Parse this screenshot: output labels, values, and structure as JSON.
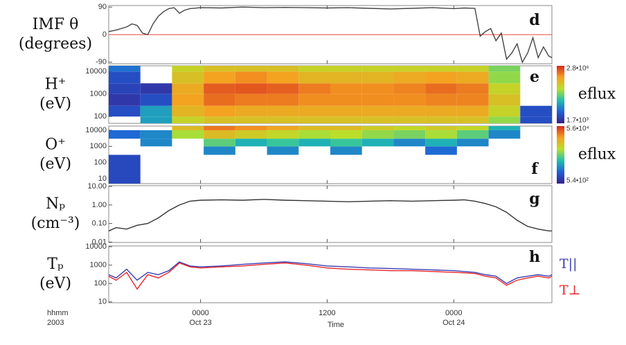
{
  "chart_data": [
    {
      "type": "line",
      "panel": "d",
      "ylabel": [
        "IMF θ",
        "(degrees)"
      ],
      "log_y": false,
      "xlim": [
        -8.7,
        33.3
      ],
      "ylim": [
        -95,
        95
      ],
      "yticks": [
        90,
        0,
        -90
      ],
      "reference_line": 0,
      "reference_color": "#e8413a",
      "x": [
        -8.7,
        -8,
        -7,
        -6.5,
        -6,
        -5.5,
        -5,
        -4.5,
        -4,
        -3.5,
        -3,
        -2.5,
        -2,
        -1.5,
        -1,
        0,
        2,
        4,
        6,
        8,
        10,
        12,
        14,
        16,
        18,
        20,
        22,
        24,
        25,
        26,
        26.5,
        27,
        27.5,
        28,
        28.5,
        29,
        29.5,
        30,
        30.5,
        31,
        31.5,
        32,
        32.5,
        33,
        33.3
      ],
      "series": [
        {
          "color": "#444444",
          "values": [
            10,
            15,
            25,
            35,
            30,
            5,
            0,
            35,
            60,
            75,
            85,
            88,
            70,
            80,
            85,
            88,
            87,
            90,
            88,
            89,
            88,
            87,
            88,
            86,
            84,
            86,
            88,
            85,
            87,
            86,
            -5,
            10,
            20,
            -20,
            5,
            -80,
            -60,
            -30,
            -90,
            -60,
            -10,
            -75,
            -40,
            -70,
            -75
          ]
        }
      ]
    },
    {
      "type": "heatmap",
      "panel": "e",
      "ylabel": [
        "H⁺",
        "(eV)"
      ],
      "log_y": true,
      "xlim": [
        -8.7,
        33.3
      ],
      "ylim": [
        50,
        18000
      ],
      "yticks": [
        10000,
        1000,
        100
      ],
      "x_edges": [
        -8.7,
        -5.7,
        -2.7,
        0.3,
        3.3,
        6.3,
        9.3,
        12.3,
        15.3,
        18.3,
        21.3,
        24.3,
        27.3,
        30.3,
        33.3
      ],
      "y_edges": [
        50,
        100,
        300,
        1000,
        3000,
        10000,
        18000
      ],
      "values": [
        [
          null,
          20000,
          200000,
          300000,
          300000,
          300000,
          300000,
          300000,
          300000,
          300000,
          300000,
          300000,
          100000,
          5000
        ],
        [
          5000,
          20000,
          400000,
          600000,
          500000,
          500000,
          500000,
          500000,
          500000,
          500000,
          500000,
          500000,
          200000,
          5000
        ],
        [
          3000,
          5000,
          600000,
          1200000,
          1000000,
          1000000,
          800000,
          800000,
          800000,
          800000,
          900000,
          900000,
          300000,
          null
        ],
        [
          4000,
          3000,
          500000,
          1500000,
          1600000,
          1400000,
          1000000,
          800000,
          800000,
          900000,
          1200000,
          1000000,
          200000,
          null
        ],
        [
          5000,
          null,
          300000,
          600000,
          800000,
          600000,
          400000,
          400000,
          400000,
          500000,
          600000,
          500000,
          100000,
          null
        ],
        [
          10000,
          null,
          200000,
          300000,
          300000,
          300000,
          200000,
          200000,
          200000,
          200000,
          200000,
          200000,
          80000,
          null
        ]
      ],
      "clim": [
        1700,
        2800000
      ],
      "colorbar": {
        "label": "eflux",
        "ticks": [
          {
            "value": 2800000,
            "label": "2.8•10⁶"
          },
          {
            "value": 1700,
            "label": "1.7•10³"
          }
        ]
      }
    },
    {
      "type": "heatmap",
      "panel": "f",
      "ylabel": [
        "O⁺",
        "(eV)"
      ],
      "log_y": true,
      "xlim": [
        -8.7,
        33.3
      ],
      "ylim": [
        5,
        18000
      ],
      "yticks": [
        10000,
        1000,
        100,
        10
      ],
      "x_edges": [
        -8.7,
        -5.7,
        -2.7,
        0.3,
        3.3,
        6.3,
        9.3,
        12.3,
        15.3,
        18.3,
        21.3,
        24.3,
        27.3,
        30.3,
        33.3
      ],
      "y_edges": [
        5,
        300,
        1000,
        3000,
        10000,
        18000
      ],
      "values": [
        [
          1000,
          null,
          null,
          null,
          null,
          null,
          null,
          null,
          null,
          null,
          null,
          null,
          null,
          null
        ],
        [
          null,
          null,
          null,
          2000,
          null,
          2000,
          null,
          2000,
          null,
          null,
          1500,
          null,
          null,
          null
        ],
        [
          null,
          2000,
          null,
          5000,
          3000,
          4000,
          3000,
          4000,
          3000,
          2000,
          3000,
          2000,
          null,
          null
        ],
        [
          1500,
          2000,
          8000,
          15000,
          12000,
          10000,
          8000,
          9000,
          7000,
          6000,
          8000,
          5000,
          2000,
          null
        ],
        [
          null,
          null,
          15000,
          30000,
          25000,
          20000,
          15000,
          15000,
          12000,
          10000,
          12000,
          10000,
          3000,
          null
        ]
      ],
      "clim": [
        540,
        56000
      ],
      "colorbar": {
        "label": "eflux",
        "ticks": [
          {
            "value": 56000,
            "label": "5.6•10⁴"
          },
          {
            "value": 540,
            "label": "5.4•10²"
          }
        ]
      }
    },
    {
      "type": "line",
      "panel": "g",
      "ylabel": [
        "Nₚ",
        "(cm⁻³)"
      ],
      "log_y": true,
      "xlim": [
        -8.7,
        33.3
      ],
      "ylim": [
        0.0095,
        11
      ],
      "yticks": [
        {
          "value": 10,
          "label": "10.00"
        },
        {
          "value": 1,
          "label": "1.00"
        },
        {
          "value": 0.1,
          "label": "0.10"
        },
        {
          "value": 0.01,
          "label": "0.01"
        }
      ],
      "x": [
        -8.7,
        -8,
        -7,
        -6,
        -5,
        -4,
        -3,
        -2,
        -1,
        0,
        2,
        4,
        6,
        8,
        10,
        12,
        14,
        16,
        18,
        20,
        22,
        24,
        25,
        26,
        27,
        28,
        29,
        30,
        31,
        32,
        33,
        33.3
      ],
      "series": [
        {
          "color": "#333333",
          "values": [
            0.04,
            0.06,
            0.05,
            0.08,
            0.1,
            0.2,
            0.5,
            1.0,
            1.6,
            1.8,
            1.9,
            1.8,
            2.0,
            1.8,
            1.7,
            1.6,
            1.5,
            1.6,
            1.7,
            1.6,
            1.7,
            1.8,
            1.9,
            1.6,
            1.2,
            0.8,
            0.4,
            0.15,
            0.07,
            0.05,
            0.04,
            0.04
          ]
        }
      ]
    },
    {
      "type": "line",
      "panel": "h",
      "ylabel": [
        "Tₚ",
        "(eV)"
      ],
      "log_y": true,
      "xlim": [
        -8.7,
        33.3
      ],
      "ylim": [
        9,
        11000
      ],
      "yticks": [
        10000,
        1000,
        100,
        10
      ],
      "xticks": [
        {
          "value": 0,
          "label": "0000"
        },
        {
          "value": 12,
          "label": "1200"
        },
        {
          "value": 24,
          "label": "0000"
        }
      ],
      "xtick_dates": [
        "Oct 23",
        null,
        "Oct 24"
      ],
      "xlabel": "Time",
      "x_format": "hhmm",
      "year": "2003",
      "x": [
        -8.7,
        -8,
        -7,
        -6,
        -5,
        -4,
        -3,
        -2,
        -1,
        0,
        2,
        4,
        6,
        8,
        10,
        12,
        14,
        16,
        18,
        20,
        22,
        24,
        25,
        26,
        27,
        28,
        29,
        30,
        31,
        32,
        33,
        33.3
      ],
      "series": [
        {
          "name": "T||",
          "color": "#3b3bb0",
          "values": [
            300,
            200,
            600,
            150,
            400,
            300,
            500,
            1500,
            900,
            800,
            900,
            1100,
            1300,
            1500,
            1200,
            900,
            800,
            700,
            650,
            600,
            550,
            500,
            450,
            400,
            300,
            250,
            100,
            200,
            250,
            300,
            250,
            300
          ]
        },
        {
          "name": "T⊥",
          "color": "#e8262a",
          "values": [
            250,
            150,
            400,
            50,
            300,
            200,
            400,
            1300,
            800,
            700,
            800,
            900,
            1100,
            1300,
            1000,
            700,
            600,
            550,
            500,
            500,
            450,
            400,
            380,
            350,
            250,
            200,
            80,
            150,
            200,
            250,
            200,
            250
          ]
        }
      ]
    }
  ]
}
